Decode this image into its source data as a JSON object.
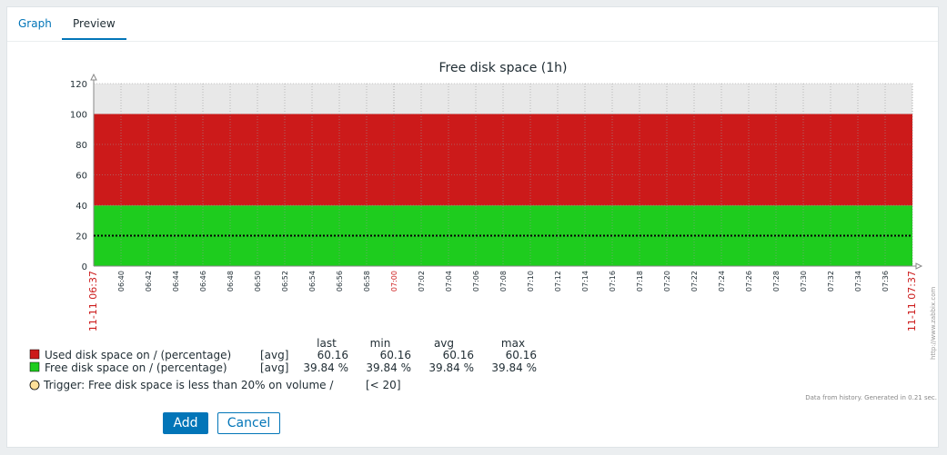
{
  "tabs": [
    {
      "label": "Graph",
      "active": false
    },
    {
      "label": "Preview",
      "active": true
    }
  ],
  "buttons": {
    "add": "Add",
    "cancel": "Cancel"
  },
  "colors": {
    "used": "#cc1a1a",
    "free": "#1ecc1e",
    "trigger": "#ffe099",
    "accent": "#0275b8",
    "time_marker": "#cc1a1a"
  },
  "chart_data": {
    "type": "area",
    "title": "Free disk space (1h)",
    "xlabel": "",
    "ylabel": "",
    "ylim": [
      0,
      120
    ],
    "yticks": [
      0,
      20,
      40,
      60,
      80,
      100,
      120
    ],
    "xticks": [
      "11-11 06:37",
      "06:40",
      "06:42",
      "06:44",
      "06:46",
      "06:48",
      "06:50",
      "06:52",
      "06:54",
      "06:56",
      "06:58",
      "07:00",
      "07:02",
      "07:04",
      "07:06",
      "07:08",
      "07:10",
      "07:12",
      "07:14",
      "07:16",
      "07:18",
      "07:20",
      "07:22",
      "07:24",
      "07:26",
      "07:28",
      "07:30",
      "07:32",
      "07:34",
      "07:36",
      "11-11 07:37"
    ],
    "stacked": true,
    "grid": true,
    "series": [
      {
        "name": "Free disk space on / (percentage)",
        "values": [
          39.84,
          39.84
        ],
        "color": "#1ecc1e"
      },
      {
        "name": "Used disk space on / (percentage)",
        "values": [
          60.16,
          60.16
        ],
        "color": "#cc1a1a"
      }
    ],
    "trigger": {
      "label": "Trigger: Free disk space is less than 20% on volume /",
      "condition": "[< 20]",
      "value": 20
    },
    "footer_note": "Data from history. Generated in 0.21 sec.",
    "watermark": "http://www.zabbix.com"
  },
  "legend": {
    "headers": {
      "last": "last",
      "min": "min",
      "avg": "avg",
      "max": "max"
    },
    "rows": [
      {
        "name": "Used disk space on / (percentage)",
        "func": "[avg]",
        "last": "60.16",
        "min": "60.16",
        "avg": "60.16",
        "max": "60.16"
      },
      {
        "name": "Free disk space on / (percentage)",
        "func": "[avg]",
        "last": "39.84 %",
        "min": "39.84 %",
        "avg": "39.84 %",
        "max": "39.84 %"
      }
    ]
  }
}
